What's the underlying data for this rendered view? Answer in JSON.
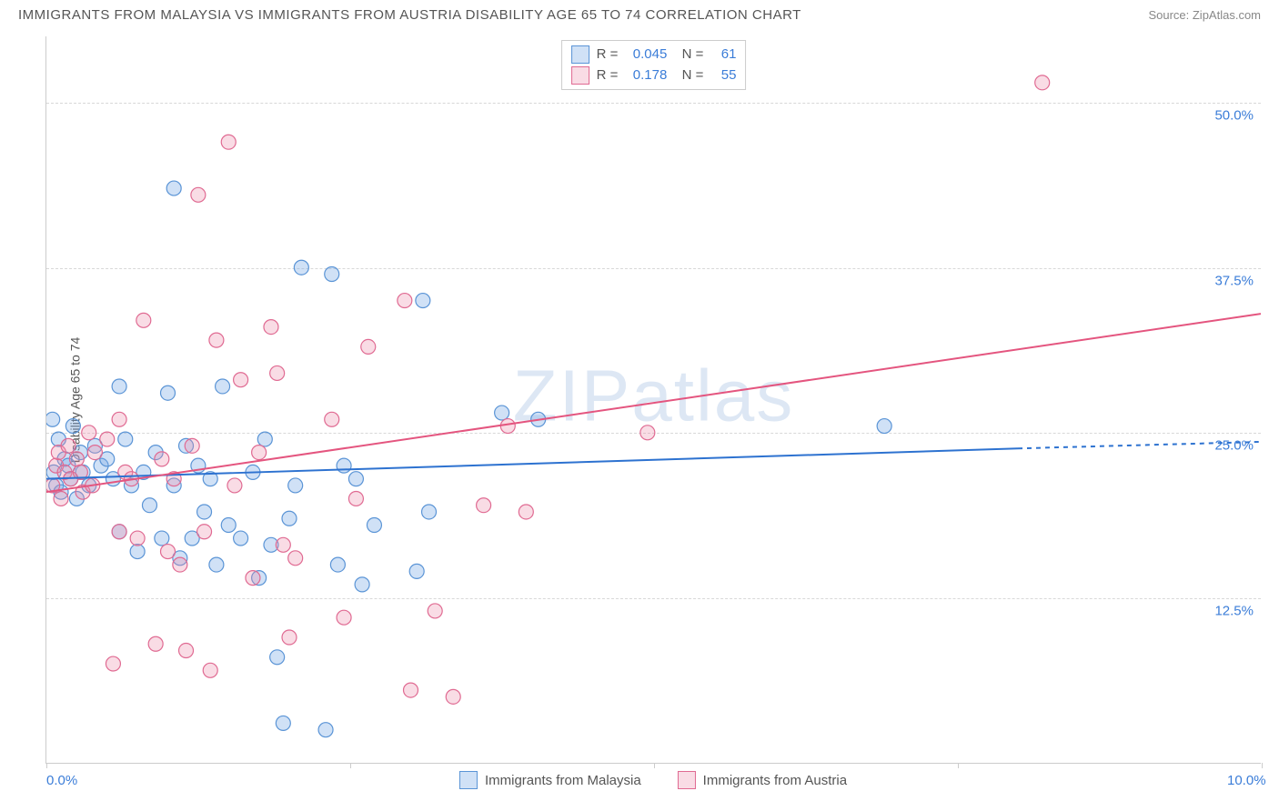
{
  "title": "IMMIGRANTS FROM MALAYSIA VS IMMIGRANTS FROM AUSTRIA DISABILITY AGE 65 TO 74 CORRELATION CHART",
  "source": "Source: ZipAtlas.com",
  "watermark": "ZIPatlas",
  "y_axis_label": "Disability Age 65 to 74",
  "chart": {
    "type": "scatter",
    "xlim": [
      0,
      10
    ],
    "ylim": [
      0,
      55
    ],
    "x_ticks": [
      0,
      2.5,
      5,
      7.5,
      10
    ],
    "x_tick_labels": [
      "0.0%",
      "",
      "",
      "",
      "10.0%"
    ],
    "y_ticks": [
      12.5,
      25.0,
      37.5,
      50.0
    ],
    "y_tick_labels": [
      "12.5%",
      "25.0%",
      "37.5%",
      "50.0%"
    ],
    "background_color": "#ffffff",
    "grid_color": "#d8d8d8",
    "axis_color": "#cccccc",
    "tick_label_color": "#3b7dd8",
    "axis_label_color": "#555555",
    "marker_radius": 8,
    "marker_stroke_width": 1.2,
    "trend_line_width": 2,
    "series": [
      {
        "name": "Immigrants from Malaysia",
        "fill": "rgba(120,170,230,0.35)",
        "stroke": "#5a94d6",
        "line_color": "#2d72d0",
        "R": "0.045",
        "N": "61",
        "trend": {
          "x1": 0,
          "y1": 21.5,
          "x2": 8.0,
          "y2": 23.8,
          "x2_dash": 10,
          "y2_dash": 24.3
        },
        "points": [
          [
            0.05,
            26.0
          ],
          [
            0.06,
            22.0
          ],
          [
            0.08,
            21.0
          ],
          [
            0.1,
            24.5
          ],
          [
            0.12,
            20.5
          ],
          [
            0.15,
            23.0
          ],
          [
            0.18,
            22.5
          ],
          [
            0.2,
            21.5
          ],
          [
            0.22,
            25.5
          ],
          [
            0.25,
            20.0
          ],
          [
            0.28,
            23.5
          ],
          [
            0.3,
            22.0
          ],
          [
            0.35,
            21.0
          ],
          [
            0.4,
            24.0
          ],
          [
            0.45,
            22.5
          ],
          [
            0.5,
            23.0
          ],
          [
            0.55,
            21.5
          ],
          [
            0.6,
            28.5
          ],
          [
            0.6,
            17.5
          ],
          [
            0.65,
            24.5
          ],
          [
            0.7,
            21.0
          ],
          [
            0.75,
            16.0
          ],
          [
            0.8,
            22.0
          ],
          [
            0.85,
            19.5
          ],
          [
            0.9,
            23.5
          ],
          [
            0.95,
            17.0
          ],
          [
            1.0,
            28.0
          ],
          [
            1.05,
            21.0
          ],
          [
            1.05,
            43.5
          ],
          [
            1.1,
            15.5
          ],
          [
            1.15,
            24.0
          ],
          [
            1.2,
            17.0
          ],
          [
            1.25,
            22.5
          ],
          [
            1.3,
            19.0
          ],
          [
            1.35,
            21.5
          ],
          [
            1.4,
            15.0
          ],
          [
            1.45,
            28.5
          ],
          [
            1.5,
            18.0
          ],
          [
            1.6,
            17.0
          ],
          [
            1.7,
            22.0
          ],
          [
            1.75,
            14.0
          ],
          [
            1.8,
            24.5
          ],
          [
            1.85,
            16.5
          ],
          [
            1.9,
            8.0
          ],
          [
            1.95,
            3.0
          ],
          [
            2.0,
            18.5
          ],
          [
            2.05,
            21.0
          ],
          [
            2.1,
            37.5
          ],
          [
            2.3,
            2.5
          ],
          [
            2.35,
            37.0
          ],
          [
            2.4,
            15.0
          ],
          [
            2.45,
            22.5
          ],
          [
            2.55,
            21.5
          ],
          [
            2.6,
            13.5
          ],
          [
            2.7,
            18.0
          ],
          [
            3.05,
            14.5
          ],
          [
            3.1,
            35.0
          ],
          [
            3.15,
            19.0
          ],
          [
            3.75,
            26.5
          ],
          [
            4.05,
            26.0
          ],
          [
            6.9,
            25.5
          ]
        ]
      },
      {
        "name": "Immigrants from Austria",
        "fill": "rgba(235,140,170,0.3)",
        "stroke": "#e06a92",
        "line_color": "#e4557f",
        "R": "0.178",
        "N": "55",
        "trend": {
          "x1": 0,
          "y1": 20.5,
          "x2": 10,
          "y2": 34.0
        },
        "points": [
          [
            0.05,
            21.0
          ],
          [
            0.08,
            22.5
          ],
          [
            0.1,
            23.5
          ],
          [
            0.12,
            20.0
          ],
          [
            0.15,
            22.0
          ],
          [
            0.18,
            24.0
          ],
          [
            0.2,
            21.5
          ],
          [
            0.25,
            23.0
          ],
          [
            0.28,
            22.0
          ],
          [
            0.3,
            20.5
          ],
          [
            0.35,
            25.0
          ],
          [
            0.38,
            21.0
          ],
          [
            0.4,
            23.5
          ],
          [
            0.5,
            24.5
          ],
          [
            0.55,
            7.5
          ],
          [
            0.6,
            17.5
          ],
          [
            0.6,
            26.0
          ],
          [
            0.65,
            22.0
          ],
          [
            0.7,
            21.5
          ],
          [
            0.75,
            17.0
          ],
          [
            0.8,
            33.5
          ],
          [
            0.9,
            9.0
          ],
          [
            0.95,
            23.0
          ],
          [
            1.0,
            16.0
          ],
          [
            1.05,
            21.5
          ],
          [
            1.1,
            15.0
          ],
          [
            1.15,
            8.5
          ],
          [
            1.2,
            24.0
          ],
          [
            1.25,
            43.0
          ],
          [
            1.3,
            17.5
          ],
          [
            1.35,
            7.0
          ],
          [
            1.4,
            32.0
          ],
          [
            1.5,
            47.0
          ],
          [
            1.55,
            21.0
          ],
          [
            1.6,
            29.0
          ],
          [
            1.7,
            14.0
          ],
          [
            1.75,
            23.5
          ],
          [
            1.85,
            33.0
          ],
          [
            1.9,
            29.5
          ],
          [
            1.95,
            16.5
          ],
          [
            2.0,
            9.5
          ],
          [
            2.05,
            15.5
          ],
          [
            2.35,
            26.0
          ],
          [
            2.45,
            11.0
          ],
          [
            2.55,
            20.0
          ],
          [
            2.65,
            31.5
          ],
          [
            2.95,
            35.0
          ],
          [
            3.0,
            5.5
          ],
          [
            3.2,
            11.5
          ],
          [
            3.35,
            5.0
          ],
          [
            3.6,
            19.5
          ],
          [
            3.8,
            25.5
          ],
          [
            3.95,
            19.0
          ],
          [
            4.95,
            25.0
          ],
          [
            8.2,
            51.5
          ]
        ]
      }
    ]
  },
  "legend_bottom": [
    {
      "label": "Immigrants from Malaysia"
    },
    {
      "label": "Immigrants from Austria"
    }
  ]
}
